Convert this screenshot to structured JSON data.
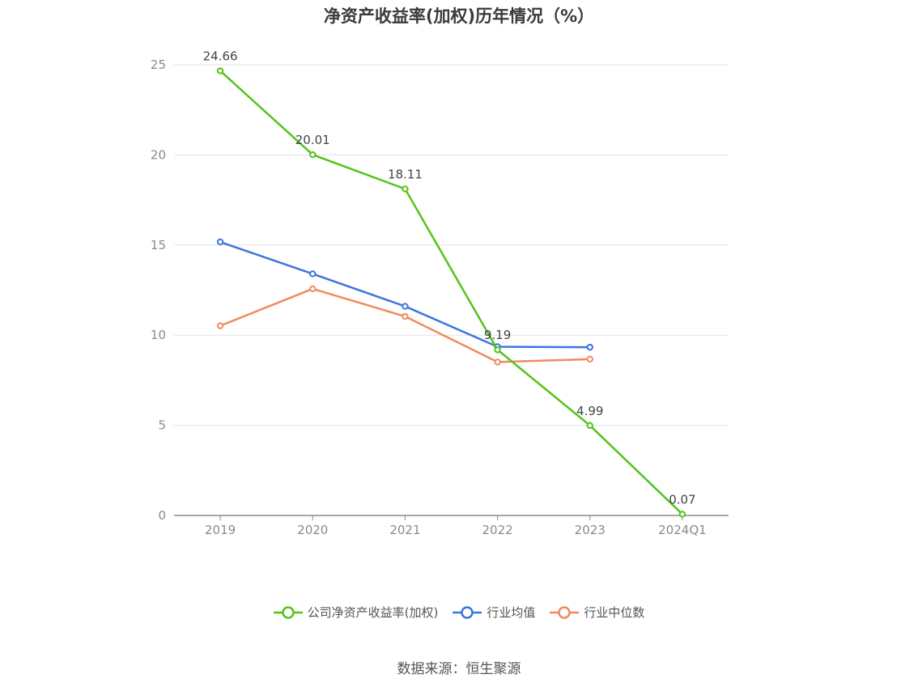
{
  "title": "净资产收益率(加权)历年情况（%）",
  "source": "数据来源：恒生聚源",
  "chart_data": {
    "type": "line",
    "categories": [
      "2019",
      "2020",
      "2021",
      "2022",
      "2023",
      "2024Q1"
    ],
    "ylim": [
      0,
      25
    ],
    "yticks": [
      0,
      5,
      10,
      15,
      20,
      25
    ],
    "grid": true,
    "legend_position": "bottom-center",
    "series": [
      {
        "name": "公司净资产收益率(加权)",
        "color": "#52c41a",
        "values": [
          24.66,
          20.01,
          18.11,
          9.19,
          4.99,
          0.07
        ],
        "labels": [
          "24.66",
          "20.01",
          "18.11",
          "9.19",
          "4.99",
          "0.07"
        ]
      },
      {
        "name": "行业均值",
        "color": "#3e74e0",
        "values": [
          15.17,
          13.4,
          11.6,
          9.36,
          9.33,
          null
        ]
      },
      {
        "name": "行业中位数",
        "color": "#f08a5d",
        "values": [
          10.52,
          12.57,
          11.04,
          8.51,
          8.67,
          null
        ]
      }
    ]
  }
}
